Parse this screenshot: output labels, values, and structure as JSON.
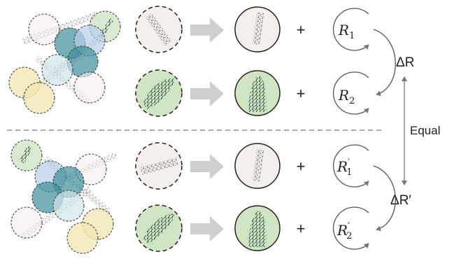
{
  "operators": {
    "plus": "+"
  },
  "top": {
    "rotation_labels": [
      "R",
      "R"
    ],
    "rotation_subscripts": [
      "1",
      "2"
    ],
    "delta_label": "ΔR"
  },
  "bottom": {
    "rotation_labels": [
      "R",
      "R"
    ],
    "rotation_subscripts": [
      "1",
      "2"
    ],
    "rotation_primes": [
      "′",
      "′"
    ],
    "delta_label": "ΔR′"
  },
  "relation_label": "Equal",
  "colors": {
    "patch_white": "#f5efec",
    "patch_green": "#cfe5c4",
    "patch_teal": "#3f8f9b",
    "patch_blue": "#b5cfe8",
    "patch_yellow": "#f4e7b4",
    "arrow_gray": "#cfcfcf",
    "line_gray": "#7a7a7a"
  },
  "icons": [
    "point-cloud-patches-icon",
    "block-arrow-icon",
    "rotation-circle-icon",
    "double-arrow-icon"
  ]
}
